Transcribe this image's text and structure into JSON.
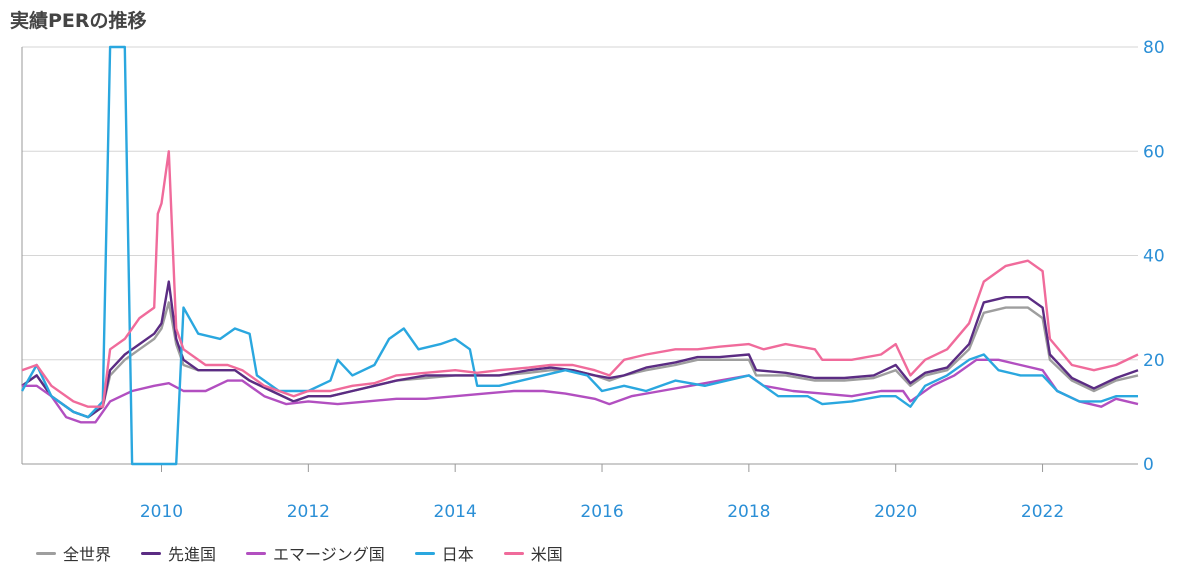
{
  "title": "実績PERの推移",
  "chart_data": {
    "type": "line",
    "title": "実績PERの推移",
    "xlabel": "",
    "ylabel": "",
    "xlim": [
      2008.1,
      2023.3
    ],
    "ylim": [
      0,
      80
    ],
    "x_ticks": [
      "2010",
      "2012",
      "2014",
      "2016",
      "2018",
      "2020",
      "2022"
    ],
    "y_ticks": [
      "0",
      "20",
      "40",
      "60",
      "80"
    ],
    "y_axis_side": "right",
    "grid": "horizontal",
    "legend_position": "bottom",
    "series": [
      {
        "name": "全世界",
        "color": "#9e9e9e",
        "points": [
          [
            2008.1,
            15
          ],
          [
            2008.3,
            17
          ],
          [
            2008.5,
            13
          ],
          [
            2008.8,
            10
          ],
          [
            2009.0,
            9
          ],
          [
            2009.2,
            11
          ],
          [
            2009.3,
            17
          ],
          [
            2009.5,
            20
          ],
          [
            2009.7,
            22
          ],
          [
            2009.9,
            24
          ],
          [
            2010.0,
            26
          ],
          [
            2010.1,
            31
          ],
          [
            2010.2,
            23
          ],
          [
            2010.3,
            19
          ],
          [
            2010.5,
            18
          ],
          [
            2010.8,
            18
          ],
          [
            2011.0,
            18
          ],
          [
            2011.2,
            16
          ],
          [
            2011.5,
            14
          ],
          [
            2011.8,
            12
          ],
          [
            2012.0,
            13
          ],
          [
            2012.3,
            13
          ],
          [
            2012.6,
            14
          ],
          [
            2012.9,
            15
          ],
          [
            2013.2,
            16
          ],
          [
            2013.6,
            16.5
          ],
          [
            2014.0,
            17
          ],
          [
            2014.3,
            17
          ],
          [
            2014.6,
            17
          ],
          [
            2015.0,
            17.5
          ],
          [
            2015.3,
            18
          ],
          [
            2015.6,
            18
          ],
          [
            2015.9,
            17
          ],
          [
            2016.1,
            16
          ],
          [
            2016.3,
            17
          ],
          [
            2016.6,
            18
          ],
          [
            2017.0,
            19
          ],
          [
            2017.3,
            20
          ],
          [
            2017.6,
            20
          ],
          [
            2018.0,
            20
          ],
          [
            2018.1,
            17
          ],
          [
            2018.5,
            17
          ],
          [
            2018.9,
            16
          ],
          [
            2019.3,
            16
          ],
          [
            2019.7,
            16.5
          ],
          [
            2020.0,
            18
          ],
          [
            2020.2,
            15
          ],
          [
            2020.4,
            17
          ],
          [
            2020.7,
            18
          ],
          [
            2021.0,
            22
          ],
          [
            2021.2,
            29
          ],
          [
            2021.5,
            30
          ],
          [
            2021.8,
            30
          ],
          [
            2022.0,
            28
          ],
          [
            2022.1,
            20
          ],
          [
            2022.4,
            16
          ],
          [
            2022.7,
            14
          ],
          [
            2023.0,
            16
          ],
          [
            2023.3,
            17
          ]
        ]
      },
      {
        "name": "先進国",
        "color": "#5b2c83",
        "points": [
          [
            2008.1,
            15
          ],
          [
            2008.3,
            17
          ],
          [
            2008.5,
            13
          ],
          [
            2008.8,
            10
          ],
          [
            2009.0,
            9
          ],
          [
            2009.2,
            11
          ],
          [
            2009.3,
            18
          ],
          [
            2009.5,
            21
          ],
          [
            2009.7,
            23
          ],
          [
            2009.9,
            25
          ],
          [
            2010.0,
            27
          ],
          [
            2010.1,
            35
          ],
          [
            2010.2,
            24
          ],
          [
            2010.3,
            20
          ],
          [
            2010.5,
            18
          ],
          [
            2010.8,
            18
          ],
          [
            2011.0,
            18
          ],
          [
            2011.2,
            16
          ],
          [
            2011.5,
            14
          ],
          [
            2011.8,
            12
          ],
          [
            2012.0,
            13
          ],
          [
            2012.3,
            13
          ],
          [
            2012.6,
            14
          ],
          [
            2012.9,
            15
          ],
          [
            2013.2,
            16
          ],
          [
            2013.6,
            17
          ],
          [
            2014.0,
            17
          ],
          [
            2014.3,
            17
          ],
          [
            2014.6,
            17
          ],
          [
            2015.0,
            18
          ],
          [
            2015.3,
            18.5
          ],
          [
            2015.6,
            18
          ],
          [
            2015.9,
            17
          ],
          [
            2016.1,
            16.5
          ],
          [
            2016.3,
            17
          ],
          [
            2016.6,
            18.5
          ],
          [
            2017.0,
            19.5
          ],
          [
            2017.3,
            20.5
          ],
          [
            2017.6,
            20.5
          ],
          [
            2018.0,
            21
          ],
          [
            2018.1,
            18
          ],
          [
            2018.5,
            17.5
          ],
          [
            2018.9,
            16.5
          ],
          [
            2019.3,
            16.5
          ],
          [
            2019.7,
            17
          ],
          [
            2020.0,
            19
          ],
          [
            2020.2,
            15.5
          ],
          [
            2020.4,
            17.5
          ],
          [
            2020.7,
            18.5
          ],
          [
            2021.0,
            23
          ],
          [
            2021.2,
            31
          ],
          [
            2021.5,
            32
          ],
          [
            2021.8,
            32
          ],
          [
            2022.0,
            30
          ],
          [
            2022.1,
            21
          ],
          [
            2022.4,
            16.5
          ],
          [
            2022.7,
            14.5
          ],
          [
            2023.0,
            16.5
          ],
          [
            2023.3,
            18
          ]
        ]
      },
      {
        "name": "エマージング国",
        "color": "#b24fc0",
        "points": [
          [
            2008.1,
            15
          ],
          [
            2008.3,
            15
          ],
          [
            2008.5,
            13
          ],
          [
            2008.7,
            9
          ],
          [
            2008.9,
            8
          ],
          [
            2009.1,
            8
          ],
          [
            2009.3,
            12
          ],
          [
            2009.6,
            14
          ],
          [
            2009.9,
            15
          ],
          [
            2010.1,
            15.5
          ],
          [
            2010.3,
            14
          ],
          [
            2010.6,
            14
          ],
          [
            2010.9,
            16
          ],
          [
            2011.1,
            16
          ],
          [
            2011.4,
            13
          ],
          [
            2011.7,
            11.5
          ],
          [
            2012.0,
            12
          ],
          [
            2012.4,
            11.5
          ],
          [
            2012.8,
            12
          ],
          [
            2013.2,
            12.5
          ],
          [
            2013.6,
            12.5
          ],
          [
            2014.0,
            13
          ],
          [
            2014.4,
            13.5
          ],
          [
            2014.8,
            14
          ],
          [
            2015.2,
            14
          ],
          [
            2015.5,
            13.5
          ],
          [
            2015.9,
            12.5
          ],
          [
            2016.1,
            11.5
          ],
          [
            2016.4,
            13
          ],
          [
            2016.8,
            14
          ],
          [
            2017.2,
            15
          ],
          [
            2017.6,
            16
          ],
          [
            2018.0,
            17
          ],
          [
            2018.2,
            15
          ],
          [
            2018.6,
            14
          ],
          [
            2019.0,
            13.5
          ],
          [
            2019.4,
            13
          ],
          [
            2019.8,
            14
          ],
          [
            2020.1,
            14
          ],
          [
            2020.2,
            12
          ],
          [
            2020.5,
            15
          ],
          [
            2020.8,
            17
          ],
          [
            2021.1,
            20
          ],
          [
            2021.4,
            20
          ],
          [
            2021.7,
            19
          ],
          [
            2022.0,
            18
          ],
          [
            2022.2,
            14
          ],
          [
            2022.5,
            12
          ],
          [
            2022.8,
            11
          ],
          [
            2023.0,
            12.5
          ],
          [
            2023.3,
            11.5
          ]
        ]
      },
      {
        "name": "日本",
        "color": "#2aa7df",
        "points": [
          [
            2008.1,
            14
          ],
          [
            2008.3,
            19
          ],
          [
            2008.5,
            13
          ],
          [
            2008.8,
            10
          ],
          [
            2009.0,
            9
          ],
          [
            2009.2,
            12
          ],
          [
            2009.3,
            80
          ],
          [
            2009.5,
            80
          ],
          [
            2009.6,
            0
          ],
          [
            2010.2,
            0
          ],
          [
            2010.3,
            30
          ],
          [
            2010.5,
            25
          ],
          [
            2010.8,
            24
          ],
          [
            2011.0,
            26
          ],
          [
            2011.2,
            25
          ],
          [
            2011.3,
            17
          ],
          [
            2011.6,
            14
          ],
          [
            2012.0,
            14
          ],
          [
            2012.3,
            16
          ],
          [
            2012.4,
            20
          ],
          [
            2012.6,
            17
          ],
          [
            2012.9,
            19
          ],
          [
            2013.1,
            24
          ],
          [
            2013.3,
            26
          ],
          [
            2013.5,
            22
          ],
          [
            2013.8,
            23
          ],
          [
            2014.0,
            24
          ],
          [
            2014.2,
            22
          ],
          [
            2014.3,
            15
          ],
          [
            2014.6,
            15
          ],
          [
            2014.9,
            16
          ],
          [
            2015.2,
            17
          ],
          [
            2015.5,
            18
          ],
          [
            2015.8,
            17
          ],
          [
            2016.0,
            14
          ],
          [
            2016.3,
            15
          ],
          [
            2016.6,
            14
          ],
          [
            2017.0,
            16
          ],
          [
            2017.4,
            15
          ],
          [
            2017.7,
            16
          ],
          [
            2018.0,
            17
          ],
          [
            2018.2,
            15
          ],
          [
            2018.4,
            13
          ],
          [
            2018.8,
            13
          ],
          [
            2019.0,
            11.5
          ],
          [
            2019.4,
            12
          ],
          [
            2019.8,
            13
          ],
          [
            2020.0,
            13
          ],
          [
            2020.2,
            11
          ],
          [
            2020.4,
            15
          ],
          [
            2020.7,
            17
          ],
          [
            2021.0,
            20
          ],
          [
            2021.2,
            21
          ],
          [
            2021.4,
            18
          ],
          [
            2021.7,
            17
          ],
          [
            2022.0,
            17
          ],
          [
            2022.2,
            14
          ],
          [
            2022.5,
            12
          ],
          [
            2022.8,
            12
          ],
          [
            2023.0,
            13
          ],
          [
            2023.3,
            13
          ]
        ]
      },
      {
        "name": "米国",
        "color": "#f06b9b",
        "points": [
          [
            2008.1,
            18
          ],
          [
            2008.3,
            19
          ],
          [
            2008.5,
            15
          ],
          [
            2008.8,
            12
          ],
          [
            2009.0,
            11
          ],
          [
            2009.2,
            11
          ],
          [
            2009.3,
            22
          ],
          [
            2009.5,
            24
          ],
          [
            2009.7,
            28
          ],
          [
            2009.9,
            30
          ],
          [
            2009.95,
            48
          ],
          [
            2010.0,
            50
          ],
          [
            2010.1,
            60
          ],
          [
            2010.2,
            26
          ],
          [
            2010.3,
            22
          ],
          [
            2010.6,
            19
          ],
          [
            2010.9,
            19
          ],
          [
            2011.1,
            18
          ],
          [
            2011.4,
            15
          ],
          [
            2011.8,
            13
          ],
          [
            2012.0,
            14
          ],
          [
            2012.3,
            14
          ],
          [
            2012.6,
            15
          ],
          [
            2012.9,
            15.5
          ],
          [
            2013.2,
            17
          ],
          [
            2013.6,
            17.5
          ],
          [
            2014.0,
            18
          ],
          [
            2014.3,
            17.5
          ],
          [
            2014.6,
            18
          ],
          [
            2015.0,
            18.5
          ],
          [
            2015.3,
            19
          ],
          [
            2015.6,
            19
          ],
          [
            2015.9,
            18
          ],
          [
            2016.1,
            17
          ],
          [
            2016.3,
            20
          ],
          [
            2016.6,
            21
          ],
          [
            2017.0,
            22
          ],
          [
            2017.3,
            22
          ],
          [
            2017.6,
            22.5
          ],
          [
            2018.0,
            23
          ],
          [
            2018.2,
            22
          ],
          [
            2018.5,
            23
          ],
          [
            2018.9,
            22
          ],
          [
            2019.0,
            20
          ],
          [
            2019.4,
            20
          ],
          [
            2019.8,
            21
          ],
          [
            2020.0,
            23
          ],
          [
            2020.2,
            17
          ],
          [
            2020.4,
            20
          ],
          [
            2020.7,
            22
          ],
          [
            2021.0,
            27
          ],
          [
            2021.2,
            35
          ],
          [
            2021.5,
            38
          ],
          [
            2021.8,
            39
          ],
          [
            2022.0,
            37
          ],
          [
            2022.1,
            24
          ],
          [
            2022.4,
            19
          ],
          [
            2022.7,
            18
          ],
          [
            2023.0,
            19
          ],
          [
            2023.3,
            21
          ]
        ]
      }
    ]
  }
}
